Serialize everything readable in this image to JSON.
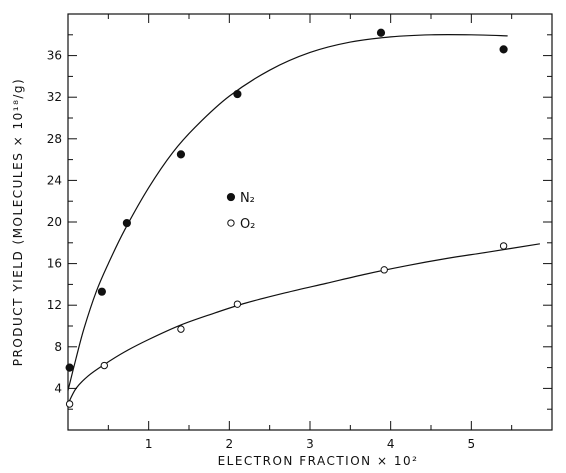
{
  "chart_data": {
    "type": "scatter",
    "title": "",
    "xlabel": "ELECTRON FRACTION × 10²",
    "ylabel": "PRODUCT YIELD (MOLECULES × 10¹⁸/g)",
    "xlim": [
      0,
      6
    ],
    "ylim": [
      0,
      40
    ],
    "x_ticks": [
      1,
      2,
      3,
      4,
      5
    ],
    "y_ticks": [
      4,
      8,
      12,
      16,
      20,
      24,
      28,
      32,
      36
    ],
    "grid": false,
    "legend_position": "center",
    "series": [
      {
        "name": "N₂",
        "marker": "filled-circle",
        "x": [
          0.02,
          0.42,
          0.73,
          1.4,
          2.1,
          3.88,
          5.4
        ],
        "y": [
          6.0,
          13.3,
          19.9,
          26.5,
          32.3,
          38.2,
          36.6
        ],
        "fit_curve": {
          "x": [
            0.0,
            0.1,
            0.2,
            0.35,
            0.5,
            0.7,
            1.0,
            1.3,
            1.6,
            2.0,
            2.5,
            3.0,
            3.5,
            4.0,
            4.5,
            5.0,
            5.45
          ],
          "y": [
            3.8,
            6.9,
            9.8,
            13.3,
            16.0,
            19.2,
            23.3,
            26.7,
            29.3,
            32.1,
            34.6,
            36.3,
            37.3,
            37.8,
            38.0,
            38.0,
            37.9
          ]
        }
      },
      {
        "name": "O₂",
        "marker": "open-circle",
        "x": [
          0.02,
          0.45,
          1.4,
          2.1,
          3.92,
          5.4
        ],
        "y": [
          2.5,
          6.2,
          9.7,
          12.1,
          15.4,
          17.7
        ],
        "fit_curve": {
          "x": [
            0.0,
            0.1,
            0.25,
            0.45,
            0.7,
            1.0,
            1.4,
            1.8,
            2.2,
            2.7,
            3.2,
            3.7,
            4.2,
            4.7,
            5.2,
            5.85
          ],
          "y": [
            2.5,
            4.0,
            5.2,
            6.3,
            7.5,
            8.7,
            10.1,
            11.2,
            12.2,
            13.2,
            14.1,
            15.0,
            15.8,
            16.5,
            17.1,
            17.9
          ]
        }
      }
    ]
  },
  "legend": {
    "items": [
      {
        "label": "N₂",
        "marker": "filled-circle"
      },
      {
        "label": "O₂",
        "marker": "open-circle"
      }
    ]
  },
  "colors": {
    "ink": "#111111",
    "background": "#ffffff"
  }
}
